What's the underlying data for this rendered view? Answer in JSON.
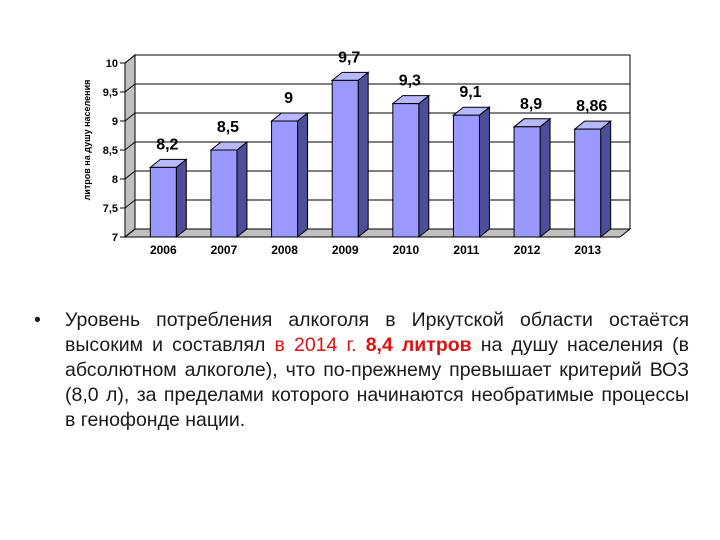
{
  "chart_data": {
    "type": "bar",
    "categories": [
      "2006",
      "2007",
      "2008",
      "2009",
      "2010",
      "2011",
      "2012",
      "2013"
    ],
    "values": [
      8.2,
      8.5,
      9,
      9.7,
      9.3,
      9.1,
      8.9,
      8.86
    ],
    "value_labels": [
      "8,2",
      "8,5",
      "9",
      "9,7",
      "9,3",
      "9,1",
      "8,9",
      "8,86"
    ],
    "yticks": [
      "7",
      "7,5",
      "8",
      "8,5",
      "9",
      "9,5",
      "10"
    ],
    "ylim": [
      7,
      10
    ],
    "ylabel": "литров на душу населения",
    "grid": true,
    "style": "3d",
    "colors": {
      "bar_front": "#9999ff",
      "bar_side": "#4d4d99",
      "bar_top": "#b8b8ff",
      "wall": "#c0c0c0"
    }
  },
  "text": {
    "bullet": "•",
    "part1": "Уровень потребления алкоголя в Иркутской области остаётся высоким и составлял ",
    "highlight1": "в 2014 г. ",
    "highlight2": "8,4 литров",
    "part2": " на душу населения (в абсолютном алкоголе), что по-прежнему превышает критерий ВОЗ (8,0 л), за пределами которого начинаются необратимые процессы в генофонде нации."
  }
}
